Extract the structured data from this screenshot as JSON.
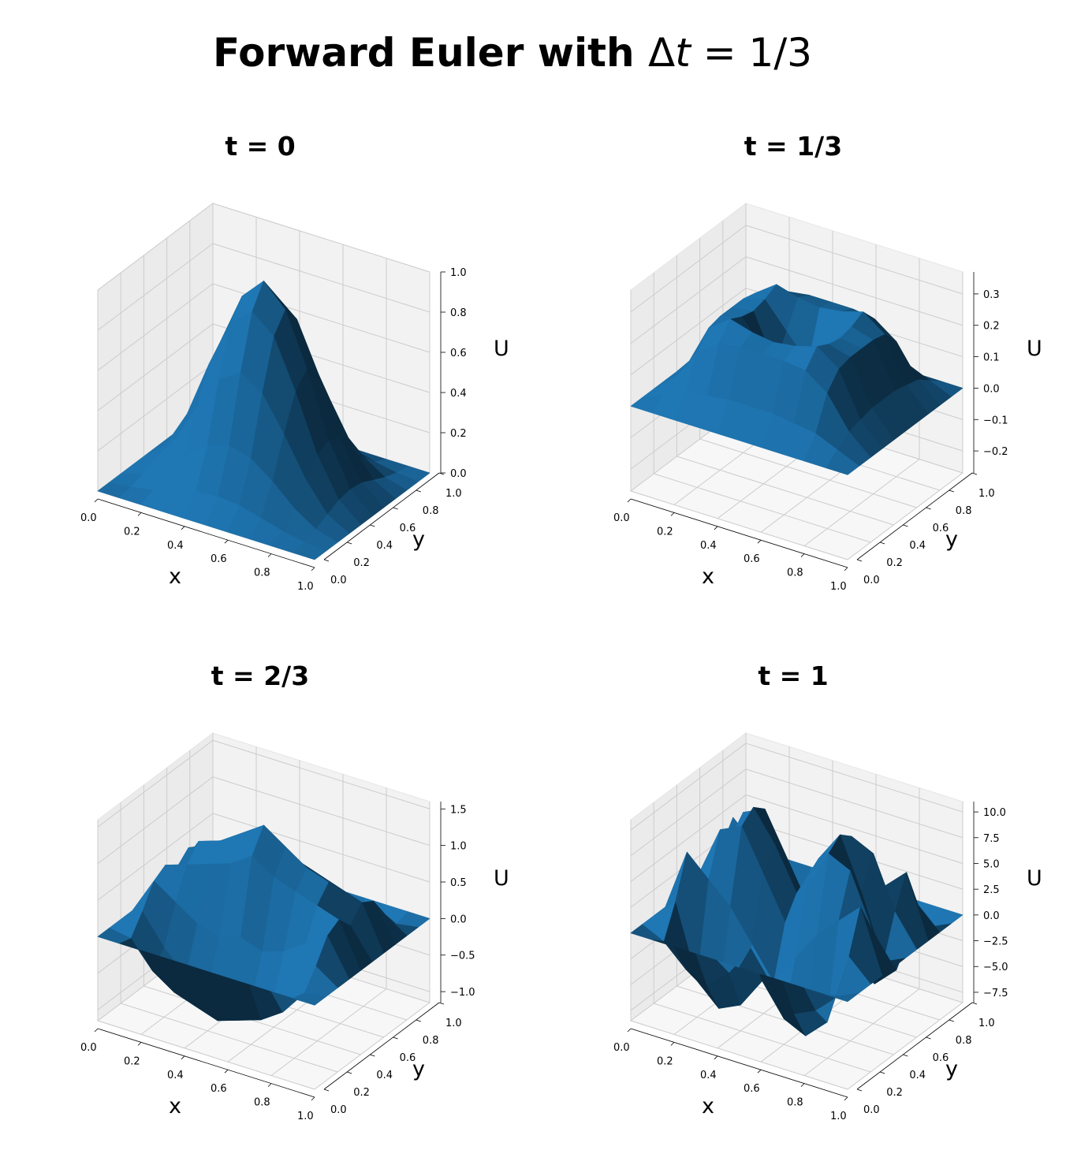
{
  "figure": {
    "title_prefix": "Forward Euler with ",
    "title_delta": "Δ",
    "title_var": "t",
    "title_suffix": " = 1/3"
  },
  "colors": {
    "surface": "#1f77b4",
    "pane": "#f2f2f2",
    "grid": "#cccccc"
  },
  "chart_data": [
    {
      "type": "surface3d",
      "title": "t = 0",
      "xlabel": "x",
      "ylabel": "y",
      "zlabel": "U",
      "xlim": [
        0,
        1
      ],
      "ylim": [
        0,
        1
      ],
      "zlim": [
        0,
        1.0
      ],
      "xticks": [
        "0.0",
        "0.2",
        "0.4",
        "0.6",
        "0.8",
        "1.0"
      ],
      "yticks": [
        "0.0",
        "0.2",
        "0.4",
        "0.6",
        "0.8",
        "1.0"
      ],
      "zticks": [
        {
          "v": 0.0,
          "label": "0.0"
        },
        {
          "v": 0.2,
          "label": "0.2"
        },
        {
          "v": 0.4,
          "label": "0.4"
        },
        {
          "v": 0.6,
          "label": "0.6"
        },
        {
          "v": 0.8,
          "label": "0.8"
        },
        {
          "v": 1.0,
          "label": "1.0"
        }
      ],
      "grid": true,
      "x": [
        0.0,
        0.1,
        0.2,
        0.3,
        0.4,
        0.5,
        0.6,
        0.7,
        0.8,
        0.9,
        1.0
      ],
      "y": [
        0.0,
        0.1,
        0.2,
        0.3,
        0.4,
        0.5,
        0.6,
        0.7,
        0.8,
        0.9,
        1.0
      ],
      "z": [
        [
          0,
          0,
          0,
          0,
          0,
          0,
          0,
          0,
          0,
          0,
          0
        ],
        [
          0,
          0.01,
          0.03,
          0.06,
          0.09,
          0.1,
          0.09,
          0.06,
          0.03,
          0.01,
          0
        ],
        [
          0,
          0.03,
          0.1,
          0.2,
          0.28,
          0.31,
          0.28,
          0.2,
          0.1,
          0.03,
          0
        ],
        [
          0,
          0.06,
          0.2,
          0.39,
          0.56,
          0.63,
          0.56,
          0.39,
          0.2,
          0.06,
          0
        ],
        [
          0,
          0.09,
          0.28,
          0.56,
          0.8,
          0.89,
          0.8,
          0.56,
          0.28,
          0.09,
          0
        ],
        [
          0,
          0.1,
          0.31,
          0.63,
          0.89,
          1.0,
          0.89,
          0.63,
          0.31,
          0.1,
          0
        ],
        [
          0,
          0.09,
          0.28,
          0.56,
          0.8,
          0.89,
          0.8,
          0.56,
          0.28,
          0.09,
          0
        ],
        [
          0,
          0.06,
          0.2,
          0.39,
          0.56,
          0.63,
          0.56,
          0.39,
          0.2,
          0.06,
          0
        ],
        [
          0,
          0.03,
          0.1,
          0.2,
          0.28,
          0.31,
          0.28,
          0.2,
          0.1,
          0.03,
          0
        ],
        [
          0,
          0.01,
          0.03,
          0.06,
          0.09,
          0.1,
          0.09,
          0.06,
          0.03,
          0.01,
          0
        ],
        [
          0,
          0,
          0,
          0,
          0,
          0,
          0,
          0,
          0,
          0,
          0
        ]
      ]
    },
    {
      "type": "surface3d",
      "title": "t = 1/3",
      "xlabel": "x",
      "ylabel": "y",
      "zlabel": "U",
      "xlim": [
        0,
        1
      ],
      "ylim": [
        0,
        1
      ],
      "zlim": [
        -0.27,
        0.37
      ],
      "xticks": [
        "0.0",
        "0.2",
        "0.4",
        "0.6",
        "0.8",
        "1.0"
      ],
      "yticks": [
        "0.0",
        "0.2",
        "0.4",
        "0.6",
        "0.8",
        "1.0"
      ],
      "zticks": [
        {
          "v": -0.2,
          "label": "−0.2"
        },
        {
          "v": -0.1,
          "label": "−0.1"
        },
        {
          "v": 0.0,
          "label": "0.0"
        },
        {
          "v": 0.1,
          "label": "0.1"
        },
        {
          "v": 0.2,
          "label": "0.2"
        },
        {
          "v": 0.3,
          "label": "0.3"
        }
      ],
      "grid": true,
      "x": [
        0.0,
        0.1,
        0.2,
        0.3,
        0.4,
        0.5,
        0.6,
        0.7,
        0.8,
        0.9,
        1.0
      ],
      "y": [
        0.0,
        0.1,
        0.2,
        0.3,
        0.4,
        0.5,
        0.6,
        0.7,
        0.8,
        0.9,
        1.0
      ],
      "z": [
        [
          0,
          0,
          0,
          0,
          0,
          0,
          0,
          0,
          0,
          0,
          0
        ],
        [
          0,
          0.03,
          0.06,
          0.07,
          0.08,
          0.08,
          0.08,
          0.07,
          0.06,
          0.03,
          0
        ],
        [
          0,
          0.06,
          0.16,
          0.21,
          0.22,
          0.22,
          0.22,
          0.21,
          0.16,
          0.06,
          0
        ],
        [
          0,
          0.07,
          0.21,
          0.26,
          0.24,
          0.23,
          0.24,
          0.26,
          0.21,
          0.07,
          0
        ],
        [
          0,
          0.08,
          0.22,
          0.24,
          0.16,
          0.08,
          0.16,
          0.24,
          0.22,
          0.08,
          0
        ],
        [
          0,
          0.08,
          0.22,
          0.23,
          0.08,
          -0.03,
          0.08,
          0.23,
          0.22,
          0.08,
          0
        ],
        [
          0,
          0.08,
          0.22,
          0.24,
          0.16,
          0.08,
          0.16,
          0.24,
          0.22,
          0.08,
          0
        ],
        [
          0,
          0.07,
          0.21,
          0.26,
          0.24,
          0.23,
          0.24,
          0.26,
          0.21,
          0.07,
          0
        ],
        [
          0,
          0.06,
          0.16,
          0.21,
          0.22,
          0.22,
          0.22,
          0.21,
          0.16,
          0.06,
          0
        ],
        [
          0,
          0.03,
          0.06,
          0.07,
          0.08,
          0.08,
          0.08,
          0.07,
          0.06,
          0.03,
          0
        ],
        [
          0,
          0,
          0,
          0,
          0,
          0,
          0,
          0,
          0,
          0,
          0
        ]
      ]
    },
    {
      "type": "surface3d",
      "title": "t = 2/3",
      "xlabel": "x",
      "ylabel": "y",
      "zlabel": "U",
      "xlim": [
        0,
        1
      ],
      "ylim": [
        0,
        1
      ],
      "zlim": [
        -1.15,
        1.6
      ],
      "xticks": [
        "0.0",
        "0.2",
        "0.4",
        "0.6",
        "0.8",
        "1.0"
      ],
      "yticks": [
        "0.0",
        "0.2",
        "0.4",
        "0.6",
        "0.8",
        "1.0"
      ],
      "zticks": [
        {
          "v": -1.0,
          "label": "−1.0"
        },
        {
          "v": -0.5,
          "label": "−0.5"
        },
        {
          "v": 0.0,
          "label": "0.0"
        },
        {
          "v": 0.5,
          "label": "0.5"
        },
        {
          "v": 1.0,
          "label": "1.0"
        },
        {
          "v": 1.5,
          "label": "1.5"
        }
      ],
      "grid": true,
      "x": [
        0.0,
        0.1,
        0.2,
        0.3,
        0.4,
        0.5,
        0.6,
        0.7,
        0.8,
        0.9,
        1.0
      ],
      "y": [
        0.0,
        0.1,
        0.2,
        0.3,
        0.4,
        0.5,
        0.6,
        0.7,
        0.8,
        0.9,
        1.0
      ],
      "z": [
        [
          0,
          0,
          0,
          0,
          0,
          0,
          0,
          0,
          0,
          0,
          0
        ],
        [
          0,
          -0.05,
          0.2,
          0.5,
          0.6,
          0.4,
          0.6,
          0.5,
          0.2,
          -0.05,
          0
        ],
        [
          0,
          -0.4,
          -0.2,
          0.3,
          0.7,
          0.9,
          0.7,
          0.3,
          -0.2,
          -0.4,
          0
        ],
        [
          0,
          -0.6,
          -0.5,
          0.1,
          0.8,
          1.0,
          0.8,
          0.1,
          -0.5,
          -0.6,
          0
        ],
        [
          0,
          -0.7,
          -0.6,
          0.0,
          0.9,
          1.2,
          0.9,
          0.0,
          -0.6,
          -0.7,
          0
        ],
        [
          0,
          -0.8,
          -0.7,
          0.1,
          1.1,
          1.4,
          1.1,
          0.1,
          -0.7,
          -0.8,
          0
        ],
        [
          0,
          -0.7,
          -0.6,
          0.0,
          0.9,
          1.2,
          0.9,
          0.0,
          -0.6,
          -0.7,
          0
        ],
        [
          0,
          -0.6,
          -0.5,
          0.1,
          0.8,
          1.0,
          0.8,
          0.1,
          -0.5,
          -0.6,
          0
        ],
        [
          0,
          -0.4,
          -0.2,
          0.3,
          0.7,
          0.9,
          0.7,
          0.3,
          -0.2,
          -0.4,
          0
        ],
        [
          0,
          -0.05,
          0.2,
          0.5,
          0.6,
          0.4,
          0.6,
          0.5,
          0.2,
          -0.05,
          0
        ],
        [
          0,
          0,
          0,
          0,
          0,
          0,
          0,
          0,
          0,
          0,
          0
        ]
      ]
    },
    {
      "type": "surface3d",
      "title": "t = 1",
      "xlabel": "x",
      "ylabel": "y",
      "zlabel": "U",
      "xlim": [
        0,
        1
      ],
      "ylim": [
        0,
        1
      ],
      "zlim": [
        -8.5,
        11.0
      ],
      "xticks": [
        "0.0",
        "0.2",
        "0.4",
        "0.6",
        "0.8",
        "1.0"
      ],
      "yticks": [
        "0.0",
        "0.2",
        "0.4",
        "0.6",
        "0.8",
        "1.0"
      ],
      "zticks": [
        {
          "v": -7.5,
          "label": "−7.5"
        },
        {
          "v": -5.0,
          "label": "−5.0"
        },
        {
          "v": -2.5,
          "label": "−2.5"
        },
        {
          "v": 0.0,
          "label": "0.0"
        },
        {
          "v": 2.5,
          "label": "2.5"
        },
        {
          "v": 5.0,
          "label": "5.0"
        },
        {
          "v": 7.5,
          "label": "7.5"
        },
        {
          "v": 10.0,
          "label": "10.0"
        }
      ],
      "grid": true,
      "x": [
        0.0,
        0.1,
        0.2,
        0.3,
        0.4,
        0.5,
        0.6,
        0.7,
        0.8,
        0.9,
        1.0
      ],
      "y": [
        0.0,
        0.1,
        0.2,
        0.3,
        0.4,
        0.5,
        0.6,
        0.7,
        0.8,
        0.9,
        1.0
      ],
      "z": [
        [
          0,
          0,
          0,
          0,
          0,
          0,
          0,
          0,
          0,
          0,
          0
        ],
        [
          0,
          -1,
          2,
          6,
          3,
          -1,
          3,
          6,
          2,
          -1,
          0
        ],
        [
          0,
          -3,
          -5,
          4,
          8,
          5,
          8,
          4,
          -5,
          -3,
          0
        ],
        [
          0,
          -4,
          -7,
          2,
          9,
          10,
          9,
          2,
          -7,
          -4,
          0
        ],
        [
          0,
          -2,
          -6,
          -1,
          5,
          7,
          5,
          -1,
          -6,
          -2,
          0
        ],
        [
          0,
          1,
          -3,
          -4,
          1,
          3,
          1,
          -4,
          -3,
          1,
          0
        ],
        [
          0,
          -2,
          -6,
          -1,
          5,
          7,
          5,
          -1,
          -6,
          -2,
          0
        ],
        [
          0,
          -4,
          -7,
          2,
          9,
          10,
          9,
          2,
          -7,
          -4,
          0
        ],
        [
          0,
          -3,
          -5,
          4,
          8,
          5,
          8,
          4,
          -5,
          -3,
          0
        ],
        [
          0,
          -1,
          2,
          6,
          3,
          -1,
          3,
          6,
          2,
          -1,
          0
        ],
        [
          0,
          0,
          0,
          0,
          0,
          0,
          0,
          0,
          0,
          0,
          0
        ]
      ]
    }
  ]
}
